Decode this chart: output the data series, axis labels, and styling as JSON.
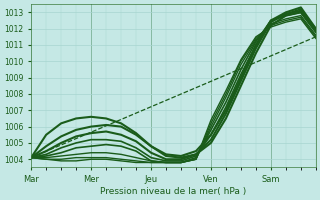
{
  "xlabel": "Pression niveau de la mer( hPa )",
  "bg_color": "#c5e8e5",
  "grid_color": "#a8d5d0",
  "line_color": "#1a5c1a",
  "ylim": [
    1003.5,
    1013.5
  ],
  "yticks": [
    1004,
    1005,
    1006,
    1007,
    1008,
    1009,
    1010,
    1011,
    1012,
    1013
  ],
  "day_labels": [
    "Mar",
    "Mer",
    "Jeu",
    "Ven",
    "Sam"
  ],
  "day_positions": [
    0,
    24,
    48,
    72,
    96
  ],
  "total_hours": 114,
  "lines": [
    {
      "x": [
        0,
        6,
        12,
        18,
        24,
        30,
        36,
        42,
        48,
        54,
        60,
        66,
        72,
        78,
        84,
        90,
        96,
        102,
        108,
        114
      ],
      "y": [
        1004.1,
        1004.8,
        1005.4,
        1005.8,
        1006.0,
        1006.1,
        1006.0,
        1005.5,
        1004.8,
        1004.2,
        1004.1,
        1004.3,
        1005.0,
        1006.5,
        1008.5,
        1010.5,
        1012.2,
        1012.8,
        1013.0,
        1011.8
      ],
      "style": "solid",
      "lw": 1.5
    },
    {
      "x": [
        0,
        6,
        12,
        18,
        24,
        30,
        36,
        42,
        48,
        54,
        60,
        66,
        72,
        78,
        84,
        90,
        96,
        102,
        108,
        114
      ],
      "y": [
        1004.1,
        1004.5,
        1005.0,
        1005.4,
        1005.6,
        1005.7,
        1005.5,
        1005.1,
        1004.4,
        1004.0,
        1004.0,
        1004.3,
        1005.2,
        1006.8,
        1008.8,
        1010.8,
        1012.4,
        1012.9,
        1013.1,
        1011.9
      ],
      "style": "solid",
      "lw": 1.5
    },
    {
      "x": [
        0,
        6,
        12,
        18,
        24,
        30,
        36,
        42,
        48,
        54,
        60,
        66,
        72,
        78,
        84,
        90,
        96,
        102,
        108,
        114
      ],
      "y": [
        1004.1,
        1004.3,
        1004.7,
        1005.0,
        1005.2,
        1005.2,
        1005.1,
        1004.7,
        1004.1,
        1003.9,
        1003.9,
        1004.2,
        1005.5,
        1007.2,
        1009.2,
        1011.0,
        1012.5,
        1012.9,
        1013.2,
        1012.0
      ],
      "style": "solid",
      "lw": 1.2
    },
    {
      "x": [
        0,
        6,
        12,
        18,
        24,
        30,
        36,
        42,
        48,
        54,
        60,
        66,
        72,
        78,
        84,
        90,
        96,
        102,
        108,
        114
      ],
      "y": [
        1004.1,
        1004.2,
        1004.4,
        1004.7,
        1004.8,
        1004.9,
        1004.8,
        1004.5,
        1003.9,
        1003.8,
        1003.8,
        1004.1,
        1005.8,
        1007.5,
        1009.5,
        1011.2,
        1012.5,
        1012.8,
        1013.0,
        1011.8
      ],
      "style": "solid",
      "lw": 1.2
    },
    {
      "x": [
        0,
        6,
        12,
        18,
        24,
        30,
        36,
        42,
        48,
        54,
        60,
        66,
        72,
        78,
        84,
        90,
        96,
        102,
        108,
        114
      ],
      "y": [
        1004.1,
        1004.1,
        1004.2,
        1004.3,
        1004.4,
        1004.4,
        1004.3,
        1004.1,
        1003.9,
        1003.8,
        1003.8,
        1004.0,
        1006.0,
        1007.8,
        1009.8,
        1011.3,
        1012.3,
        1012.6,
        1012.8,
        1011.6
      ],
      "style": "solid",
      "lw": 1.0
    },
    {
      "x": [
        0,
        6,
        12,
        18,
        24,
        30,
        36,
        42,
        48,
        54,
        60,
        66,
        72,
        78,
        84,
        90,
        96,
        102,
        108,
        114
      ],
      "y": [
        1004.1,
        1004.0,
        1004.0,
        1004.1,
        1004.1,
        1004.1,
        1004.0,
        1003.9,
        1003.8,
        1003.8,
        1003.8,
        1004.0,
        1006.2,
        1008.0,
        1010.0,
        1011.4,
        1012.2,
        1012.5,
        1012.7,
        1011.5
      ],
      "style": "solid",
      "lw": 1.0
    },
    {
      "x": [
        0,
        6,
        12,
        18,
        24,
        30,
        36,
        42,
        48,
        54,
        60,
        66,
        72,
        78,
        84,
        90,
        96,
        102,
        108,
        114
      ],
      "y": [
        1004.1,
        1004.0,
        1003.9,
        1003.9,
        1004.0,
        1004.0,
        1003.9,
        1003.8,
        1003.8,
        1003.8,
        1003.8,
        1004.0,
        1006.4,
        1008.2,
        1010.1,
        1011.5,
        1012.1,
        1012.4,
        1012.6,
        1011.4
      ],
      "style": "solid",
      "lw": 1.0
    },
    {
      "x": [
        0,
        114
      ],
      "y": [
        1004.1,
        1011.5
      ],
      "style": "dashed",
      "lw": 0.9
    },
    {
      "x": [
        0,
        6,
        12,
        18,
        24,
        30,
        36,
        42,
        48,
        54,
        60,
        66,
        72,
        78,
        84,
        90,
        96,
        102,
        108,
        114
      ],
      "y": [
        1004.1,
        1005.5,
        1006.2,
        1006.5,
        1006.6,
        1006.5,
        1006.2,
        1005.6,
        1004.8,
        1004.3,
        1004.2,
        1004.5,
        1005.5,
        1007.0,
        1009.0,
        1011.0,
        1012.5,
        1013.0,
        1013.3,
        1012.0
      ],
      "style": "solid",
      "lw": 1.5
    }
  ]
}
